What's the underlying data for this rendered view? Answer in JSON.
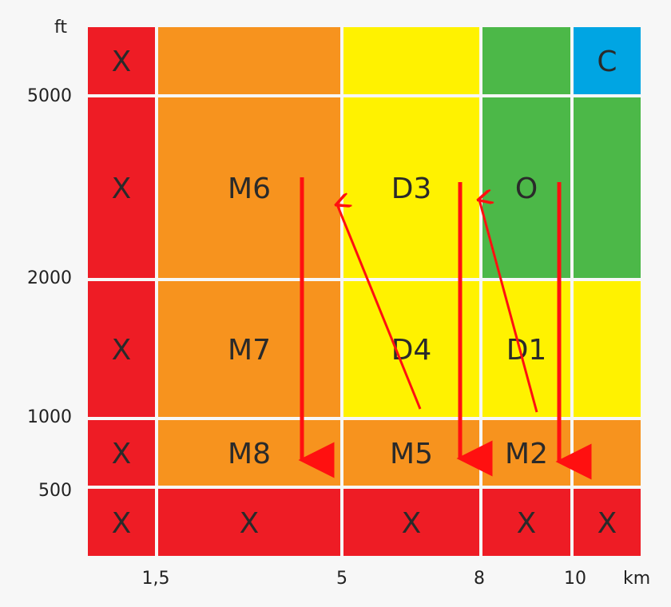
{
  "axes": {
    "y_unit": "ft",
    "x_unit": "km",
    "y_ticks": [
      "5000",
      "2000",
      "1000",
      "500"
    ],
    "x_ticks": [
      "1,5",
      "5",
      "8",
      "10"
    ]
  },
  "colors": {
    "X": "#ee1c25",
    "orange": "#f7931e",
    "yellow": "#fff200",
    "green": "#4cb848",
    "blue": "#00a5e3",
    "arrow": "#ff1010",
    "gap": "#ffffff"
  },
  "cells": [
    {
      "col": 0,
      "row": 0,
      "color": "X",
      "label": "X"
    },
    {
      "col": 0,
      "row": 1,
      "color": "X",
      "label": "X"
    },
    {
      "col": 0,
      "row": 2,
      "color": "X",
      "label": "X"
    },
    {
      "col": 0,
      "row": 3,
      "color": "X",
      "label": "X"
    },
    {
      "col": 0,
      "row": 4,
      "color": "X",
      "label": "X"
    },
    {
      "col": 1,
      "row": 0,
      "color": "orange",
      "label": ""
    },
    {
      "col": 1,
      "row": 1,
      "color": "orange",
      "label": "M6"
    },
    {
      "col": 1,
      "row": 2,
      "color": "orange",
      "label": "M7"
    },
    {
      "col": 1,
      "row": 3,
      "color": "orange",
      "label": "M8"
    },
    {
      "col": 1,
      "row": 4,
      "color": "X",
      "label": "X"
    },
    {
      "col": 2,
      "row": 0,
      "color": "yellow",
      "label": ""
    },
    {
      "col": 2,
      "row": 1,
      "color": "yellow",
      "label": "D3"
    },
    {
      "col": 2,
      "row": 2,
      "color": "yellow",
      "label": "D4"
    },
    {
      "col": 2,
      "row": 3,
      "color": "orange",
      "label": "M5"
    },
    {
      "col": 2,
      "row": 4,
      "color": "X",
      "label": "X"
    },
    {
      "col": 3,
      "row": 0,
      "color": "green",
      "label": ""
    },
    {
      "col": 3,
      "row": 1,
      "color": "green",
      "label": "O"
    },
    {
      "col": 3,
      "row": 2,
      "color": "yellow",
      "label": "D1"
    },
    {
      "col": 3,
      "row": 3,
      "color": "orange",
      "label": "M2"
    },
    {
      "col": 3,
      "row": 4,
      "color": "X",
      "label": "X"
    },
    {
      "col": 4,
      "row": 0,
      "color": "blue",
      "label": "C"
    },
    {
      "col": 4,
      "row": 1,
      "color": "green",
      "label": ""
    },
    {
      "col": 4,
      "row": 2,
      "color": "yellow",
      "label": ""
    },
    {
      "col": 4,
      "row": 3,
      "color": "orange",
      "label": ""
    },
    {
      "col": 4,
      "row": 4,
      "color": "X",
      "label": "X"
    }
  ],
  "arrows": [
    {
      "name": "arrow-m6-to-m8",
      "from": "M6",
      "to": "M8",
      "style": "down"
    },
    {
      "name": "arrow-m5-to-m6",
      "from": "M5",
      "to": "M6",
      "style": "up"
    },
    {
      "name": "arrow-d3-to-m5",
      "from": "D3",
      "to": "M5",
      "style": "down"
    },
    {
      "name": "arrow-m2-to-d3",
      "from": "M2",
      "to": "D3",
      "style": "up"
    },
    {
      "name": "arrow-o-to-m2",
      "from": "O",
      "to": "M2",
      "style": "down"
    }
  ]
}
